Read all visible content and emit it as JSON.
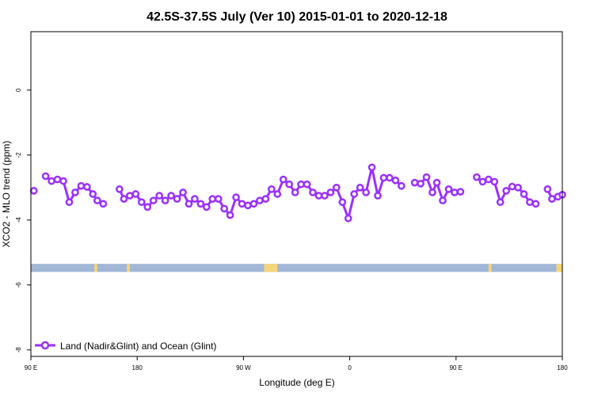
{
  "chart_data": {
    "type": "line",
    "title": "42.5S-37.5S July (Ver 10)   2015-01-01 to 2020-12-18",
    "xlabel": "Longitude (deg E)",
    "ylabel": "XCO2 - MLO trend (ppm)",
    "xlim": [
      90,
      450
    ],
    "ylim": [
      -8.2,
      1.8
    ],
    "x_ticks": [
      {
        "value": 90,
        "label": "90 E"
      },
      {
        "value": 162,
        "label": "180"
      },
      {
        "value": 234,
        "label": "90 W"
      },
      {
        "value": 306,
        "label": "0"
      },
      {
        "value": 378,
        "label": "90 E"
      },
      {
        "value": 450,
        "label": "180"
      }
    ],
    "y_ticks": [
      {
        "value": 0,
        "label": "0"
      },
      {
        "value": -2,
        "label": "-2"
      },
      {
        "value": -4,
        "label": "-4"
      },
      {
        "value": -6,
        "label": "-6"
      },
      {
        "value": -8,
        "label": "-8"
      }
    ],
    "legend": {
      "position": "bottom-left",
      "label": "Land (Nadir&Glint) and Ocean (Glint)"
    },
    "series": [
      {
        "name": "Land (Nadir&Glint) and Ocean (Glint)",
        "color": "#9b30ff",
        "segments": [
          [
            [
              92,
              -3.1
            ]
          ],
          [
            [
              100,
              -2.65
            ],
            [
              104,
              -2.8
            ],
            [
              108,
              -2.75
            ],
            [
              112,
              -2.8
            ],
            [
              116,
              -3.45
            ],
            [
              120,
              -3.15
            ],
            [
              124,
              -2.95
            ],
            [
              128,
              -2.98
            ],
            [
              132,
              -3.2
            ],
            [
              135,
              -3.4
            ],
            [
              139,
              -3.5
            ]
          ],
          [
            [
              150,
              -3.05
            ],
            [
              153,
              -3.35
            ],
            [
              157,
              -3.25
            ],
            [
              161,
              -3.2
            ],
            [
              165,
              -3.45
            ],
            [
              169,
              -3.6
            ],
            [
              173,
              -3.4
            ],
            [
              177,
              -3.25
            ],
            [
              181,
              -3.4
            ],
            [
              185,
              -3.25
            ],
            [
              189,
              -3.35
            ],
            [
              193,
              -3.15
            ],
            [
              197,
              -3.5
            ],
            [
              201,
              -3.35
            ],
            [
              205,
              -3.5
            ],
            [
              209,
              -3.6
            ],
            [
              213,
              -3.35
            ],
            [
              217,
              -3.35
            ],
            [
              221,
              -3.65
            ],
            [
              225,
              -3.85
            ],
            [
              229,
              -3.3
            ],
            [
              233,
              -3.5
            ],
            [
              237,
              -3.55
            ],
            [
              241,
              -3.5
            ],
            [
              245,
              -3.4
            ],
            [
              249,
              -3.35
            ],
            [
              253,
              -3.05
            ],
            [
              257,
              -3.2
            ],
            [
              261,
              -2.75
            ],
            [
              265,
              -2.9
            ],
            [
              269,
              -3.15
            ],
            [
              273,
              -2.9
            ],
            [
              277,
              -2.9
            ],
            [
              281,
              -3.15
            ],
            [
              285,
              -3.25
            ],
            [
              289,
              -3.25
            ],
            [
              293,
              -3.15
            ],
            [
              297,
              -3.0
            ],
            [
              301,
              -3.45
            ],
            [
              305,
              -3.95
            ],
            [
              309,
              -3.2
            ],
            [
              313,
              -3.0
            ],
            [
              317,
              -3.15
            ],
            [
              321,
              -2.38
            ],
            [
              325,
              -3.25
            ],
            [
              329,
              -2.7
            ],
            [
              333,
              -2.7
            ],
            [
              337,
              -2.78
            ],
            [
              341,
              -2.95
            ]
          ],
          [
            [
              350,
              -2.85
            ],
            [
              354,
              -2.88
            ],
            [
              358,
              -2.68
            ],
            [
              362,
              -3.15
            ],
            [
              365,
              -2.85
            ],
            [
              369,
              -3.4
            ],
            [
              373,
              -3.05
            ],
            [
              377,
              -3.15
            ],
            [
              381,
              -3.13
            ]
          ],
          [
            [
              392,
              -2.68
            ],
            [
              396,
              -2.82
            ],
            [
              400,
              -2.75
            ],
            [
              404,
              -2.82
            ],
            [
              408,
              -3.45
            ],
            [
              412,
              -3.1
            ],
            [
              416,
              -2.97
            ],
            [
              420,
              -3.0
            ],
            [
              424,
              -3.2
            ],
            [
              428,
              -3.45
            ],
            [
              432,
              -3.5
            ]
          ],
          [
            [
              440,
              -3.05
            ],
            [
              443,
              -3.35
            ],
            [
              447,
              -3.28
            ],
            [
              450,
              -3.22
            ]
          ]
        ]
      }
    ],
    "surface_band": {
      "y_range": [
        -5.35,
        -5.6
      ],
      "ocean_color": "#a2b6d6",
      "land_color": "#f5d57a",
      "land_spans": [
        [
          133,
          135
        ],
        [
          155,
          157
        ],
        [
          248,
          257
        ],
        [
          400,
          402
        ],
        [
          446,
          450
        ]
      ]
    }
  }
}
